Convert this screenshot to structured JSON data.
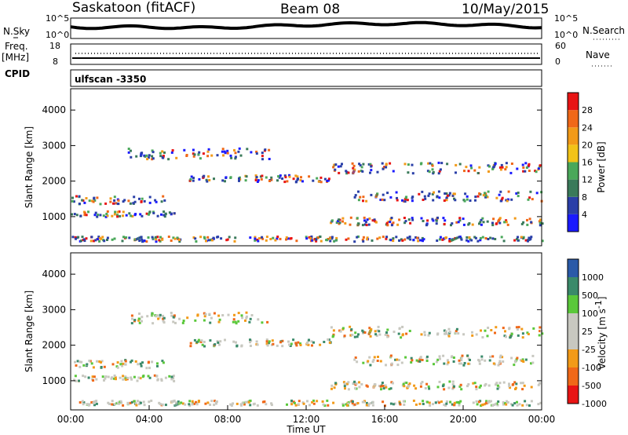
{
  "header": {
    "station": "Saskatoon (fitACF)",
    "beam": "Beam 08",
    "date": "10/May/2015"
  },
  "top_panel": {
    "left_label": "N.Sky",
    "right_label": "N.Search",
    "left_ticks": [
      "10^5",
      "10^0"
    ],
    "right_ticks": [
      "10^5",
      "10^0"
    ]
  },
  "freq_panel": {
    "left_label_line1": "Freq.",
    "left_label_line2": "[MHz]",
    "left_ticks": [
      "18",
      "8"
    ],
    "right_label": "Nave",
    "right_ticks": [
      "60",
      "0"
    ]
  },
  "cpid": {
    "label": "CPID",
    "value": "ulfscan -3350"
  },
  "colors": {
    "power_scale": [
      "#1a1aff",
      "#2a3fa8",
      "#3a7a5a",
      "#4aa85a",
      "#f2c318",
      "#f29a18",
      "#f06818",
      "#e81414"
    ],
    "velocity_scale": [
      "#e81414",
      "#f06818",
      "#f29a18",
      "#c8c8c0",
      "#c8c8c0",
      "#5ac83a",
      "#3a8a6a",
      "#2a5aa8"
    ]
  },
  "chart_data": [
    {
      "type": "heatmap",
      "xlabel": "",
      "ylabel": "Slant Range [km]",
      "yticks": [
        "1000",
        "2000",
        "3000",
        "4000"
      ],
      "xlim": [
        "00:00",
        "24:00"
      ],
      "ylim": [
        180,
        4600
      ],
      "colorbar": {
        "label": "Power [dB]",
        "ticks": [
          "4",
          "8",
          "12",
          "16",
          "20",
          "24",
          "28"
        ]
      }
    },
    {
      "type": "heatmap",
      "xlabel": "Time UT",
      "ylabel": "Slant Range [km]",
      "yticks": [
        "1000",
        "2000",
        "3000",
        "4000"
      ],
      "xticks": [
        "00:00",
        "04:00",
        "08:00",
        "12:00",
        "16:00",
        "20:00",
        "00:00"
      ],
      "xlim": [
        "00:00",
        "24:00"
      ],
      "ylim": [
        180,
        4600
      ],
      "colorbar": {
        "label_main": "Velocity [m s",
        "label_exp": "-1",
        "label_close": "]",
        "ticks": [
          "1000",
          "500",
          "100",
          "25",
          "-25",
          "-100",
          "-500",
          "-1000"
        ]
      }
    }
  ]
}
